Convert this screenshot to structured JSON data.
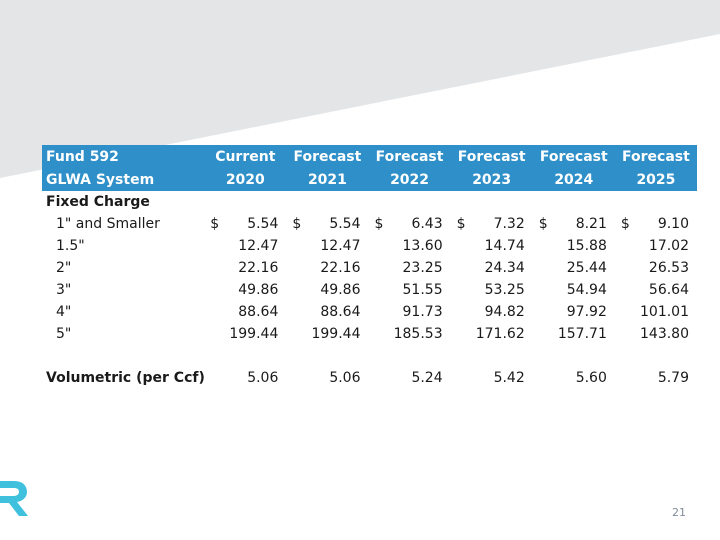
{
  "table": {
    "header_row1": [
      "Fund 592",
      "Current",
      "Forecast",
      "Forecast",
      "Forecast",
      "Forecast",
      "Forecast"
    ],
    "header_row2": [
      "GLWA System",
      "2020",
      "2021",
      "2022",
      "2023",
      "2024",
      "2025"
    ],
    "section_fixed": "Fixed Charge",
    "currency_symbol": "$",
    "rows": [
      {
        "label": "1\" and Smaller",
        "values": [
          "5.54",
          "5.54",
          "6.43",
          "7.32",
          "8.21",
          "9.10"
        ]
      },
      {
        "label": "1.5\"",
        "values": [
          "12.47",
          "12.47",
          "13.60",
          "14.74",
          "15.88",
          "17.02"
        ]
      },
      {
        "label": "2\"",
        "values": [
          "22.16",
          "22.16",
          "23.25",
          "24.34",
          "25.44",
          "26.53"
        ]
      },
      {
        "label": "3\"",
        "values": [
          "49.86",
          "49.86",
          "51.55",
          "53.25",
          "54.94",
          "56.64"
        ]
      },
      {
        "label": "4\"",
        "values": [
          "88.64",
          "88.64",
          "91.73",
          "94.82",
          "97.92",
          "101.01"
        ]
      },
      {
        "label": "5\"",
        "values": [
          "199.44",
          "199.44",
          "185.53",
          "171.62",
          "157.71",
          "143.80"
        ]
      }
    ],
    "volumetric": {
      "label": "Volumetric (per Ccf)",
      "values": [
        "5.06",
        "5.06",
        "5.24",
        "5.42",
        "5.60",
        "5.79"
      ]
    }
  },
  "page_number": "21",
  "colors": {
    "header_bg": "#2e8fc9",
    "band": "#e3e5e7",
    "logo": "#3fc1dd"
  },
  "icons": {
    "logo": "partial-brand-logo-icon"
  }
}
